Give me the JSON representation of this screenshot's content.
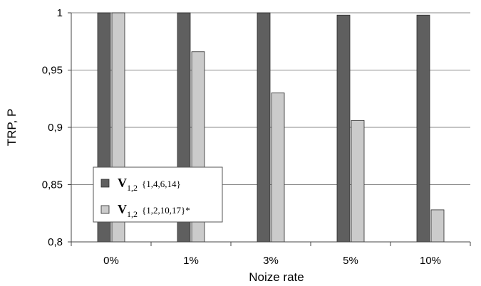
{
  "chart_data": {
    "type": "bar",
    "categories": [
      "0%",
      "1%",
      "3%",
      "5%",
      "10%"
    ],
    "series": [
      {
        "name": "V1,2 {1,4,6,14}",
        "label_main": "V",
        "label_sub": "1,2",
        "label_set": "{1,4,6,14}",
        "color": "#5f5f5f",
        "values": [
          1.0,
          1.0,
          1.0,
          0.998,
          0.998
        ]
      },
      {
        "name": "V1,2 {1,2,10,17}*",
        "label_main": "V",
        "label_sub": "1,2",
        "label_set": "{1,2,10,17}*",
        "color": "#cbcbcb",
        "values": [
          1.0,
          0.966,
          0.93,
          0.906,
          0.828
        ]
      }
    ],
    "xlabel": "Noize rate",
    "ylabel": "TRP, P",
    "ylim": [
      0.8,
      1.0
    ],
    "yticks": [
      1.0,
      0.95,
      0.9,
      0.85,
      0.8
    ],
    "ytick_labels": [
      "1",
      "0,95",
      "0,9",
      "0,85",
      "0,8"
    ],
    "grid": true,
    "legend_position": "lower-left inside plot"
  }
}
